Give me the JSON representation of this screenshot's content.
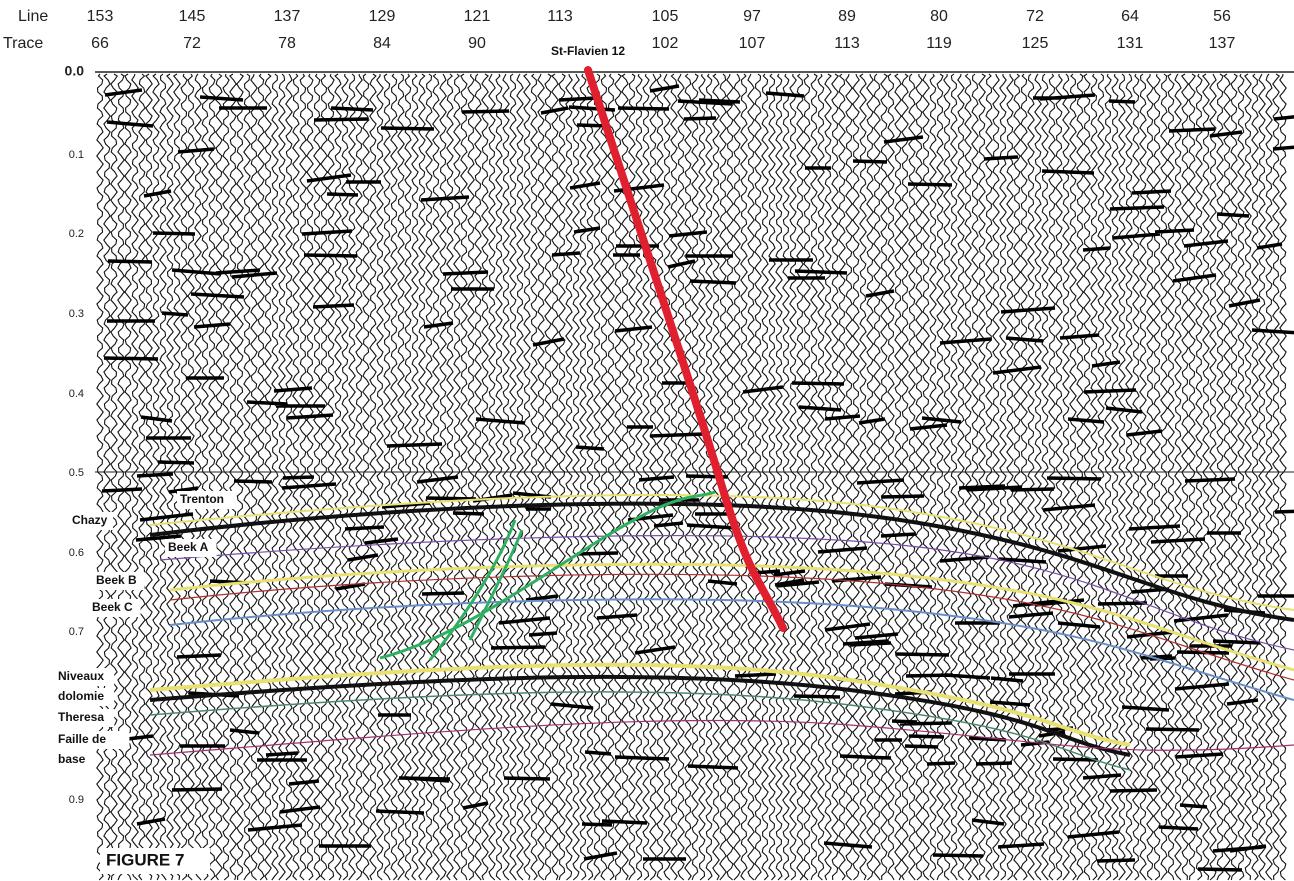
{
  "header": {
    "line_label": "Line",
    "trace_label": "Trace"
  },
  "columns": [
    {
      "line": "153",
      "trace": "66"
    },
    {
      "line": "145",
      "trace": "72"
    },
    {
      "line": "137",
      "trace": "78"
    },
    {
      "line": "129",
      "trace": "84"
    },
    {
      "line": "121",
      "trace": "90"
    },
    {
      "line": "113",
      "trace": null
    },
    {
      "line": "105",
      "trace": "102"
    },
    {
      "line": "97",
      "trace": "107"
    },
    {
      "line": "89",
      "trace": "113"
    },
    {
      "line": "80",
      "trace": "119"
    },
    {
      "line": "72",
      "trace": "125"
    },
    {
      "line": "64",
      "trace": "131"
    },
    {
      "line": "56",
      "trace": "137"
    }
  ],
  "time_labels": [
    "0.0",
    "0.1",
    "0.2",
    "0.3",
    "0.4",
    "0.5",
    "0.6",
    "0.7",
    "0.9"
  ],
  "well": "St-Flavien 12",
  "horizons": [
    {
      "lines": [
        "Trenton"
      ]
    },
    {
      "lines": [
        "Chazy"
      ]
    },
    {
      "lines": [
        "Beek A"
      ]
    },
    {
      "lines": [
        "Beek B"
      ]
    },
    {
      "lines": [
        "Beek C"
      ]
    },
    {
      "lines": [
        "Niveaux",
        "dolomie"
      ]
    },
    {
      "lines": [
        "Theresa"
      ]
    },
    {
      "lines": [
        "Faille de",
        "base"
      ]
    }
  ],
  "figure_label": "FIGURE 7"
}
